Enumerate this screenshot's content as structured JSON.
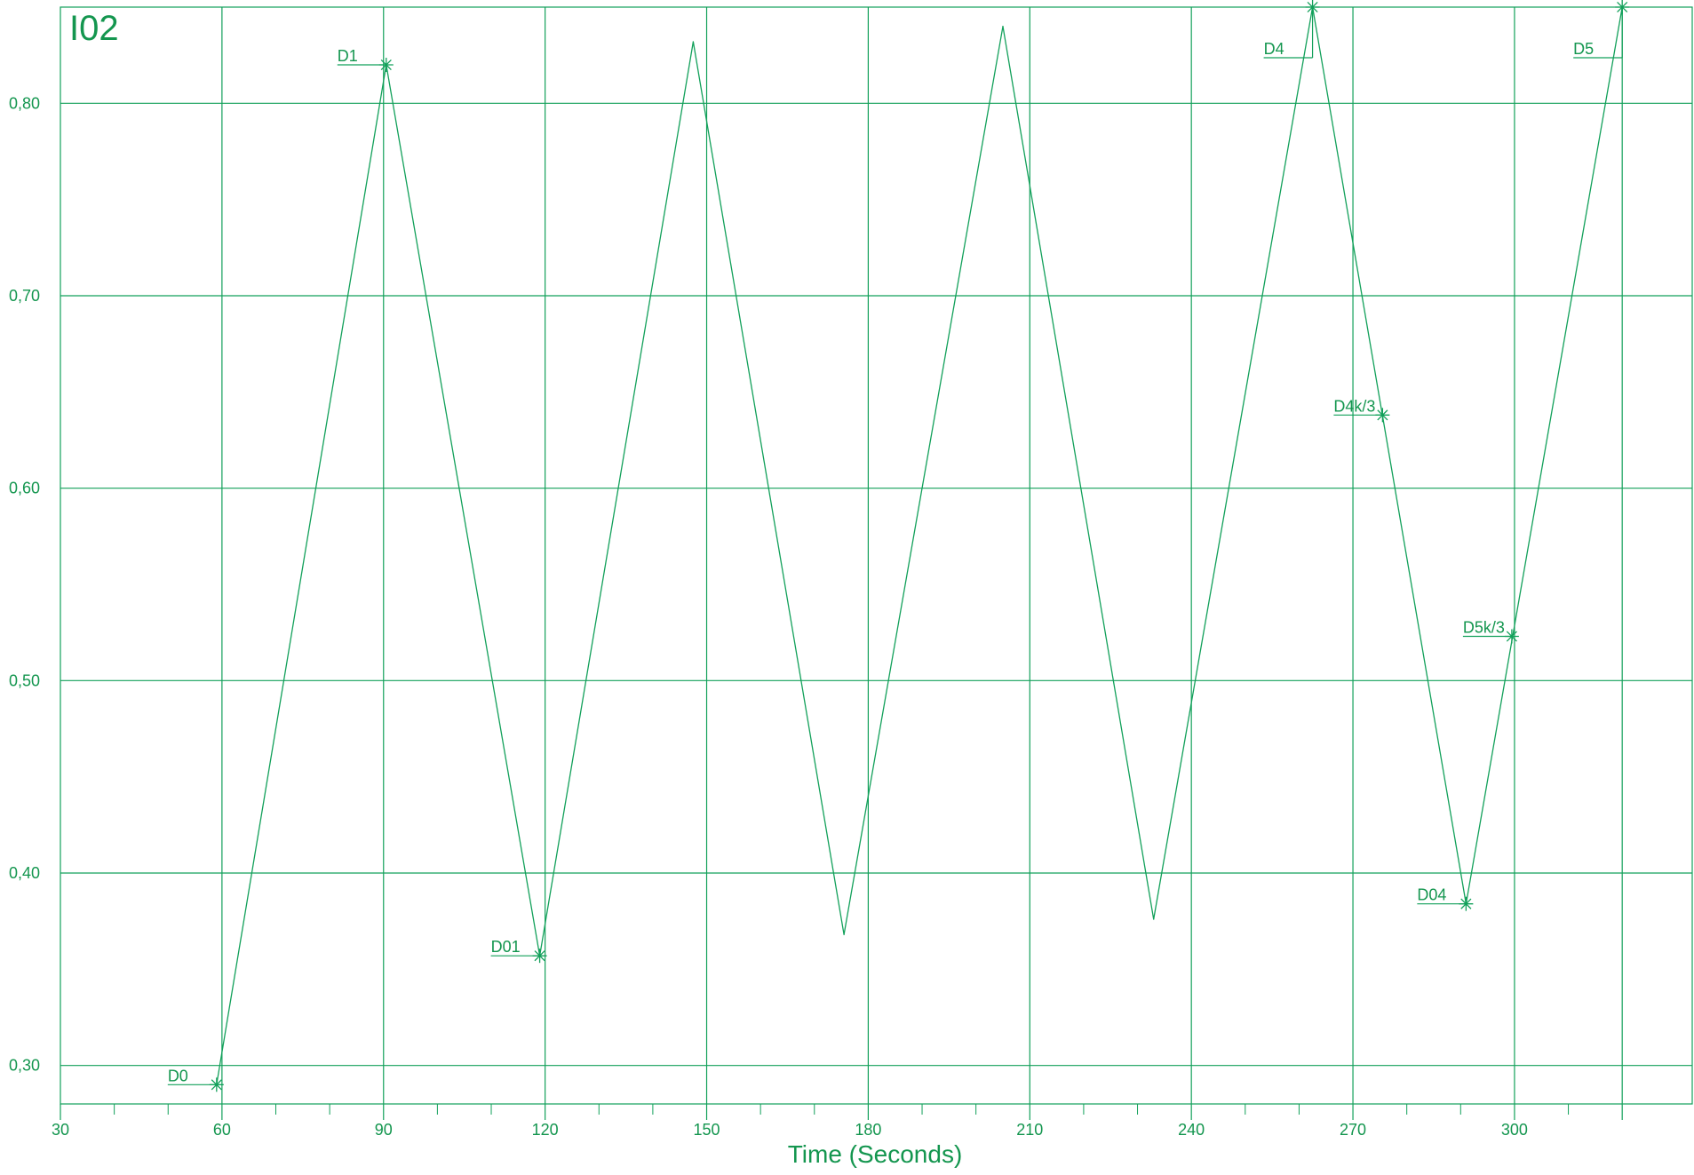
{
  "colors": {
    "line": "#12a05a",
    "text": "#14964f",
    "background": "#ffffff"
  },
  "chart_data": {
    "type": "line",
    "title": "I02",
    "xlabel": "Time (Seconds)",
    "ylabel": "",
    "xlim": [
      30,
      333
    ],
    "ylim": [
      0.28,
      0.85
    ],
    "grid": true,
    "x_ticks": [
      30,
      60,
      90,
      120,
      150,
      180,
      210,
      240,
      270,
      300
    ],
    "x_tick_labels": [
      "30",
      "60",
      "90",
      "120",
      "150",
      "180",
      "210",
      "240",
      "270",
      "300"
    ],
    "x_minor_step": 10,
    "x_extra_gridline": 320,
    "y_ticks": [
      0.3,
      0.4,
      0.5,
      0.6,
      0.7,
      0.8
    ],
    "y_tick_labels": [
      "0,30",
      "0,40",
      "0,50",
      "0,60",
      "0,70",
      "0,80"
    ],
    "series": [
      {
        "x": [
          59,
          90.5,
          119,
          147.5,
          175.5,
          205,
          233,
          262.5,
          291,
          320
        ],
        "y": [
          0.29,
          0.82,
          0.357,
          0.832,
          0.368,
          0.84,
          0.376,
          0.85,
          0.384,
          0.85
        ]
      }
    ],
    "markers": [
      {
        "label": "D0",
        "x": 59,
        "y": 0.29
      },
      {
        "label": "D1",
        "x": 90.5,
        "y": 0.82
      },
      {
        "label": "D01",
        "x": 119,
        "y": 0.357
      },
      {
        "label": "D4",
        "x": 262.5,
        "y": 0.85
      },
      {
        "label": "D4k/3",
        "x": 275.5,
        "y": 0.638
      },
      {
        "label": "D04",
        "x": 291,
        "y": 0.384
      },
      {
        "label": "D5k/3",
        "x": 299.5,
        "y": 0.523
      },
      {
        "label": "D5",
        "x": 320,
        "y": 0.85
      }
    ]
  }
}
